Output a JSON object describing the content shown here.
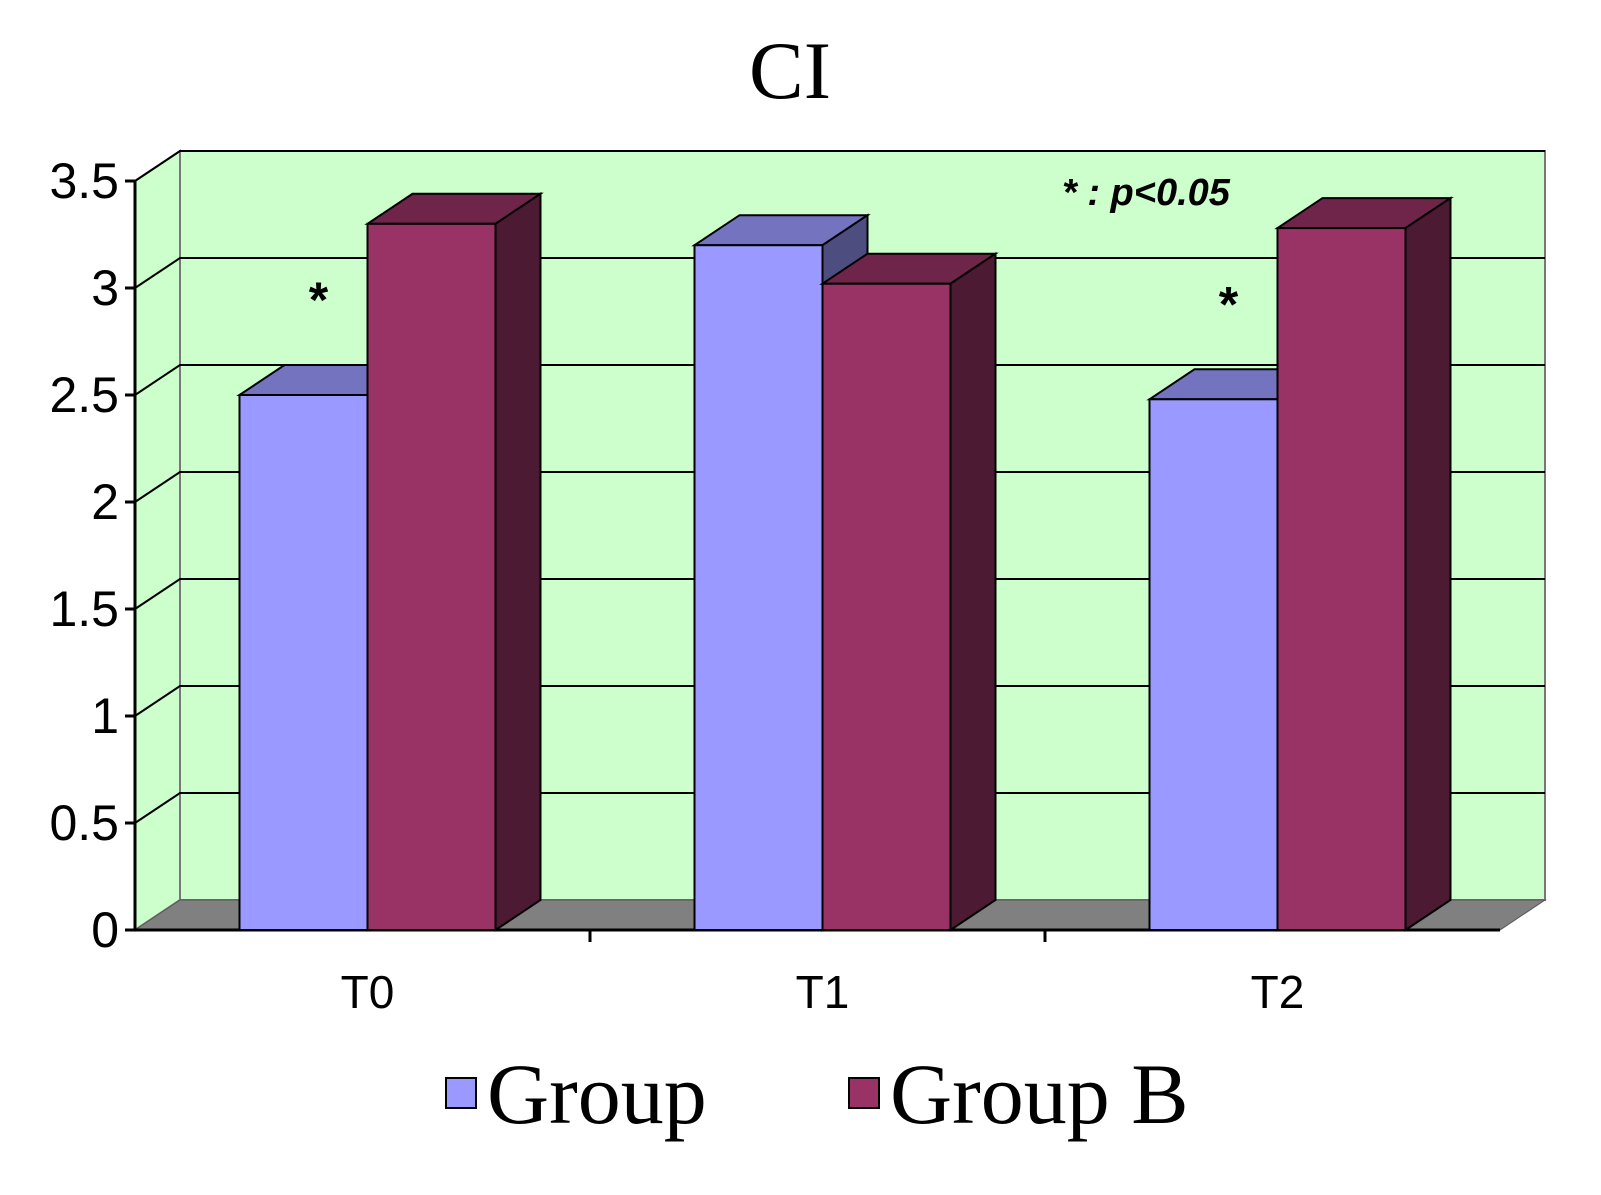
{
  "chart_data": {
    "type": "bar",
    "title": "CI",
    "categories": [
      "T0",
      "T1",
      "T2"
    ],
    "series": [
      {
        "name": "Group",
        "values": [
          2.5,
          3.2,
          2.48
        ],
        "color": "#9999ff"
      },
      {
        "name": "Group B",
        "values": [
          3.3,
          3.02,
          3.28
        ],
        "color": "#993366"
      }
    ],
    "ylim": [
      0,
      3.5
    ],
    "yticks": [
      "0",
      "0.5",
      "1",
      "1.5",
      "2",
      "2.5",
      "3",
      "3.5"
    ],
    "ytick_values": [
      0,
      0.5,
      1,
      1.5,
      2,
      2.5,
      3,
      3.5
    ],
    "grid": true,
    "legend": {
      "position": "bottom",
      "labels": [
        "Group",
        "Group B"
      ]
    },
    "annotation": "* : p<0.05",
    "significance_marker": "*",
    "significant_categories": [
      "T0",
      "T2"
    ],
    "plot_background": "#ccffcc",
    "floor_color": "#808080"
  }
}
